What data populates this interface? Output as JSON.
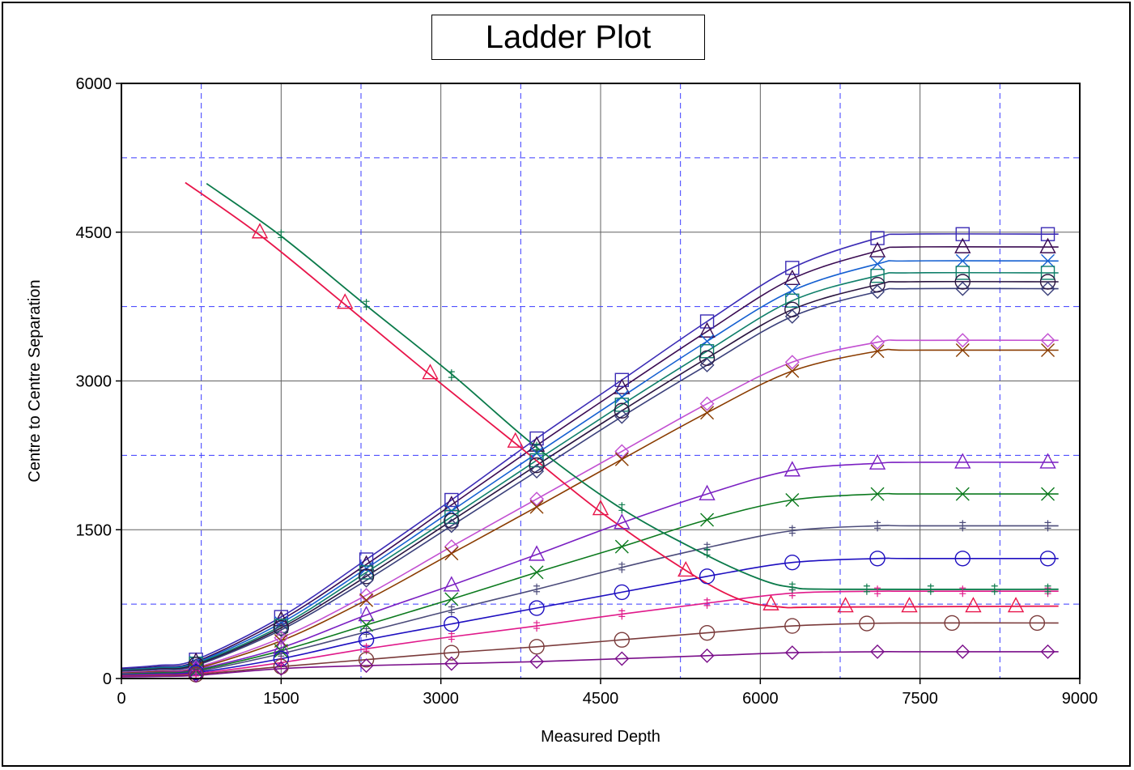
{
  "chart_data": {
    "type": "line",
    "title": "Ladder Plot",
    "xlabel": "Measured Depth",
    "ylabel": "Centre to Centre Separation",
    "xlim": [
      0,
      9000
    ],
    "ylim": [
      0,
      6000
    ],
    "xticks": [
      "0",
      "1500",
      "3000",
      "4500",
      "6000",
      "7500",
      "9000"
    ],
    "yticks": [
      "0",
      "1500",
      "3000",
      "4500",
      "6000"
    ],
    "xtick_values": [
      0,
      1500,
      3000,
      4500,
      6000,
      7500,
      9000
    ],
    "ytick_values": [
      0,
      1500,
      3000,
      4500,
      6000
    ],
    "minor_grid_x": [
      750,
      2250,
      3750,
      5250,
      6750,
      8250
    ],
    "minor_grid_y": [
      750,
      2250,
      3750,
      5250
    ],
    "grid": true,
    "legend": "none",
    "series": [
      {
        "color": "#3b2bb5",
        "marker": "square",
        "final": 4480,
        "points": [
          [
            700,
            190
          ],
          [
            1500,
            620
          ],
          [
            2300,
            1200
          ],
          [
            3100,
            1800
          ],
          [
            3900,
            2420
          ],
          [
            4700,
            3010
          ],
          [
            5500,
            3600
          ],
          [
            6300,
            4140
          ],
          [
            7100,
            4440
          ],
          [
            7900,
            4480
          ],
          [
            8700,
            4480
          ]
        ]
      },
      {
        "color": "#3a0b52",
        "marker": "triangle",
        "final": 4350,
        "points": [
          [
            700,
            170
          ],
          [
            1500,
            590
          ],
          [
            2300,
            1150
          ],
          [
            3100,
            1750
          ],
          [
            3900,
            2350
          ],
          [
            4700,
            2930
          ],
          [
            5500,
            3500
          ],
          [
            6300,
            4030
          ],
          [
            7100,
            4310
          ],
          [
            7900,
            4350
          ],
          [
            8700,
            4350
          ]
        ]
      },
      {
        "color": "#1560d1",
        "marker": "x",
        "final": 4210,
        "points": [
          [
            700,
            160
          ],
          [
            1500,
            560
          ],
          [
            2300,
            1110
          ],
          [
            3100,
            1690
          ],
          [
            3900,
            2270
          ],
          [
            4700,
            2840
          ],
          [
            5500,
            3400
          ],
          [
            6300,
            3910
          ],
          [
            7100,
            4180
          ],
          [
            7900,
            4210
          ],
          [
            8700,
            4210
          ]
        ]
      },
      {
        "color": "#0f7f6a",
        "marker": "square",
        "final": 4090,
        "points": [
          [
            700,
            150
          ],
          [
            1500,
            530
          ],
          [
            2300,
            1070
          ],
          [
            3100,
            1630
          ],
          [
            3900,
            2200
          ],
          [
            4700,
            2760
          ],
          [
            5500,
            3300
          ],
          [
            6300,
            3810
          ],
          [
            7100,
            4060
          ],
          [
            7900,
            4090
          ],
          [
            8700,
            4090
          ]
        ]
      },
      {
        "color": "#2a1540",
        "marker": "circle",
        "final": 4000,
        "points": [
          [
            700,
            140
          ],
          [
            1500,
            510
          ],
          [
            2300,
            1030
          ],
          [
            3100,
            1590
          ],
          [
            3900,
            2150
          ],
          [
            4700,
            2700
          ],
          [
            5500,
            3230
          ],
          [
            6300,
            3720
          ],
          [
            7100,
            3970
          ],
          [
            7900,
            4000
          ],
          [
            8700,
            4000
          ]
        ]
      },
      {
        "color": "#3a3f7a",
        "marker": "diamond",
        "final": 3930,
        "points": [
          [
            700,
            130
          ],
          [
            1500,
            490
          ],
          [
            2300,
            990
          ],
          [
            3100,
            1540
          ],
          [
            3900,
            2090
          ],
          [
            4700,
            2640
          ],
          [
            5500,
            3160
          ],
          [
            6300,
            3650
          ],
          [
            7100,
            3900
          ],
          [
            7900,
            3930
          ],
          [
            8700,
            3930
          ]
        ]
      },
      {
        "color": "#c24fd1",
        "marker": "diamond",
        "final": 3410,
        "points": [
          [
            700,
            110
          ],
          [
            1500,
            410
          ],
          [
            2300,
            840
          ],
          [
            3100,
            1330
          ],
          [
            3900,
            1810
          ],
          [
            4700,
            2290
          ],
          [
            5500,
            2770
          ],
          [
            6300,
            3190
          ],
          [
            7100,
            3390
          ],
          [
            7900,
            3410
          ],
          [
            8700,
            3410
          ]
        ]
      },
      {
        "color": "#8a3c00",
        "marker": "x",
        "final": 3310,
        "points": [
          [
            700,
            100
          ],
          [
            1500,
            380
          ],
          [
            2300,
            790
          ],
          [
            3100,
            1260
          ],
          [
            3900,
            1730
          ],
          [
            4700,
            2210
          ],
          [
            5500,
            2680
          ],
          [
            6300,
            3100
          ],
          [
            7100,
            3300
          ],
          [
            7900,
            3310
          ],
          [
            8700,
            3310
          ]
        ]
      },
      {
        "color": "#7a1fc2",
        "marker": "triangle",
        "final": 2180,
        "points": [
          [
            700,
            90
          ],
          [
            1500,
            310
          ],
          [
            2300,
            640
          ],
          [
            3100,
            940
          ],
          [
            3900,
            1250
          ],
          [
            4700,
            1570
          ],
          [
            5500,
            1860
          ],
          [
            6300,
            2100
          ],
          [
            7100,
            2170
          ],
          [
            7900,
            2180
          ],
          [
            8700,
            2180
          ]
        ]
      },
      {
        "color": "#0c7a1e",
        "marker": "x",
        "final": 1860,
        "points": [
          [
            700,
            80
          ],
          [
            1500,
            280
          ],
          [
            2300,
            540
          ],
          [
            3100,
            800
          ],
          [
            3900,
            1070
          ],
          [
            4700,
            1330
          ],
          [
            5500,
            1600
          ],
          [
            6300,
            1800
          ],
          [
            7100,
            1860
          ],
          [
            7900,
            1860
          ],
          [
            8700,
            1860
          ]
        ]
      },
      {
        "color": "#4b4b7a",
        "marker": "plus",
        "final": 1540,
        "points": [
          [
            700,
            70
          ],
          [
            1500,
            250
          ],
          [
            2300,
            470
          ],
          [
            3100,
            690
          ],
          [
            3900,
            900
          ],
          [
            4700,
            1120
          ],
          [
            5500,
            1320
          ],
          [
            6300,
            1490
          ],
          [
            7100,
            1540
          ],
          [
            7900,
            1540
          ],
          [
            8700,
            1540
          ]
        ]
      },
      {
        "color": "#1d0ec0",
        "marker": "circle",
        "final": 1210,
        "points": [
          [
            700,
            60
          ],
          [
            1500,
            200
          ],
          [
            2300,
            390
          ],
          [
            3100,
            550
          ],
          [
            3900,
            710
          ],
          [
            4700,
            870
          ],
          [
            5500,
            1030
          ],
          [
            6300,
            1170
          ],
          [
            7100,
            1210
          ],
          [
            7900,
            1210
          ],
          [
            8700,
            1210
          ]
        ]
      },
      {
        "color": "#e0198a",
        "marker": "plus",
        "final": 880,
        "points": [
          [
            700,
            50
          ],
          [
            1500,
            160
          ],
          [
            2300,
            300
          ],
          [
            3100,
            420
          ],
          [
            3900,
            530
          ],
          [
            4700,
            650
          ],
          [
            5500,
            760
          ],
          [
            6300,
            860
          ],
          [
            7100,
            880
          ],
          [
            7900,
            880
          ],
          [
            8700,
            880
          ]
        ]
      },
      {
        "color": "#7a3a3a",
        "marker": "circle",
        "final": 560,
        "points": [
          [
            700,
            40
          ],
          [
            1500,
            120
          ],
          [
            2300,
            190
          ],
          [
            3100,
            260
          ],
          [
            3900,
            320
          ],
          [
            4700,
            390
          ],
          [
            5500,
            460
          ],
          [
            6300,
            530
          ],
          [
            7000,
            555
          ],
          [
            7800,
            560
          ],
          [
            8600,
            560
          ]
        ]
      },
      {
        "color": "#7a0e8a",
        "marker": "diamond",
        "final": 270,
        "points": [
          [
            700,
            30
          ],
          [
            1500,
            100
          ],
          [
            2300,
            130
          ],
          [
            3100,
            150
          ],
          [
            3900,
            170
          ],
          [
            4700,
            200
          ],
          [
            5500,
            230
          ],
          [
            6300,
            260
          ],
          [
            7100,
            270
          ],
          [
            7900,
            270
          ],
          [
            8700,
            270
          ]
        ]
      },
      {
        "color": "#0a7a4a",
        "marker": "plus",
        "final": 900,
        "points": [
          [
            1500,
            4470
          ],
          [
            2300,
            3770
          ],
          [
            3100,
            3060
          ],
          [
            3900,
            2330
          ],
          [
            4700,
            1720
          ],
          [
            5500,
            1270
          ],
          [
            6300,
            920
          ],
          [
            7000,
            900
          ],
          [
            7600,
            900
          ],
          [
            8200,
            900
          ],
          [
            8700,
            900
          ]
        ]
      },
      {
        "color": "#e8154a",
        "marker": "triangle",
        "final": 730,
        "points": [
          [
            1300,
            4500
          ],
          [
            2100,
            3790
          ],
          [
            2900,
            3080
          ],
          [
            3700,
            2390
          ],
          [
            4500,
            1710
          ],
          [
            5300,
            1090
          ],
          [
            6100,
            750
          ],
          [
            6800,
            730
          ],
          [
            7400,
            730
          ],
          [
            8000,
            730
          ],
          [
            8400,
            730
          ]
        ]
      }
    ],
    "descending": [
      {
        "color": "#0a7a4a",
        "curve": [
          [
            800,
            4990
          ],
          [
            1500,
            4460
          ],
          [
            2300,
            3760
          ],
          [
            3100,
            3070
          ],
          [
            3900,
            2330
          ],
          [
            4700,
            1710
          ],
          [
            5500,
            1240
          ],
          [
            6000,
            1000
          ],
          [
            6300,
            920
          ],
          [
            6700,
            900
          ],
          [
            8800,
            900
          ]
        ]
      },
      {
        "color": "#e8154a",
        "curve": [
          [
            600,
            5000
          ],
          [
            1300,
            4470
          ],
          [
            2100,
            3770
          ],
          [
            2900,
            3060
          ],
          [
            3700,
            2370
          ],
          [
            4500,
            1680
          ],
          [
            5300,
            1090
          ],
          [
            5800,
            800
          ],
          [
            6200,
            720
          ],
          [
            6600,
            720
          ],
          [
            8800,
            730
          ]
        ]
      }
    ]
  }
}
